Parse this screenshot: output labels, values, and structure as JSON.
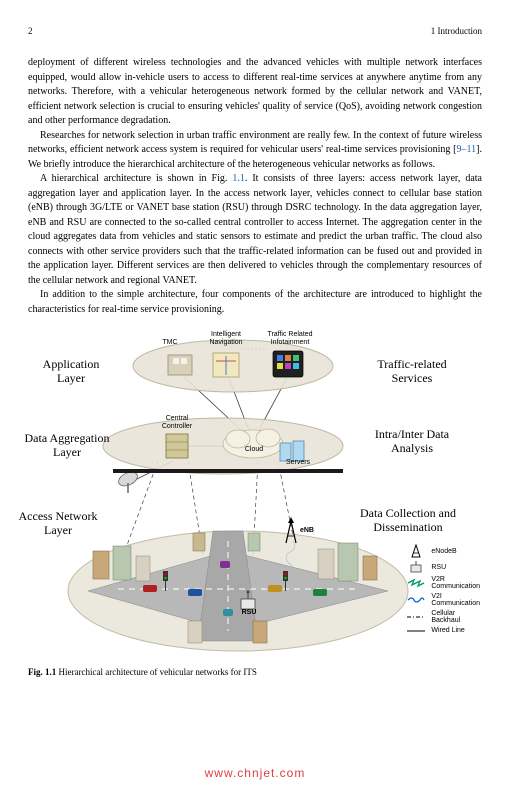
{
  "header": {
    "page_num": "2",
    "chapter": "1   Introduction"
  },
  "paragraphs": {
    "p1": "deployment of different wireless technologies and the advanced vehicles with multiple network interfaces equipped, would allow in-vehicle users to access to different real-time services at anywhere anytime from any networks. Therefore, with a vehicular heterogeneous network formed by the cellular network and VANET, efficient network selection is crucial to ensuring vehicles' quality of service (QoS), avoiding network congestion and other performance degradation.",
    "p2a": "Researches for network selection in urban traffic environment are really few. In the context of future wireless networks, efficient network access system is required for vehicular users' real-time services provisioning [",
    "p2cite": "9–11",
    "p2b": "]. We briefly introduce the hierarchical architecture of the heterogeneous vehicular networks as follows.",
    "p3a": "A hierarchical architecture is shown in Fig. ",
    "p3cite": "1.1",
    "p3b": ". It consists of three layers: access network layer, data aggregation layer and application layer. In the access network layer, vehicles connect to cellular base station (eNB) through 3G/LTE or VANET base station (RSU) through DSRC technology. In the data aggregation layer, eNB and RSU are connected to the so-called central controller to access Internet. The aggregation center in the cloud aggregates data from vehicles and static sensors to estimate and predict the urban traffic. The cloud also connects with other service providers such that the traffic-related information can be fused out and provided in the application layer. Different services are then delivered to vehicles through the complementary resources of the cellular network and regional VANET.",
    "p4": "In addition to the simple architecture, four components of the architecture are introduced to highlight the characteristics for real-time service provisioning."
  },
  "figure": {
    "layers_left": {
      "app": "Application\nLayer",
      "agg": "Data Aggregation\nLayer",
      "acc": "Access Network\nLayer"
    },
    "layers_right": {
      "app": "Traffic-related\nServices",
      "agg": "Intra/Inter Data\nAnalysis",
      "acc": "Data Collection and\nDissemination"
    },
    "top_labels": {
      "tmc": "TMC",
      "nav": "Intelligent\nNavigation",
      "info": "Traffic Related\nInfotainment"
    },
    "mid_labels": {
      "controller": "Central\nController",
      "cloud": "Cloud",
      "servers": "Servers"
    },
    "node_labels": {
      "enb": "eNB",
      "rsu": "RSU"
    },
    "legend": {
      "enb": "eNodeB",
      "rsu": "RSU",
      "v2r": "V2R\nCommunication",
      "v2i": "V2I\nCommunication",
      "backhaul": "Cellular\nBackhaul",
      "wired": "Wired Line"
    },
    "colors": {
      "ellipse_fill": "#e8e4d8",
      "ellipse_stroke": "#b8b098",
      "cloud_fill": "#f4f0e4",
      "server_fill": "#b0d8f0",
      "controller_fill": "#d0c898",
      "info_fill": "#202020",
      "nav_fill": "#f0e8c0",
      "tmc_fill": "#d8d0b8",
      "road_fill": "#b8b8b8",
      "building1": "#c8a878",
      "building2": "#b8c8b0",
      "building3": "#d8d0c0",
      "rsu_color": "#009966",
      "v2i_color": "#0066cc",
      "line": "#404040"
    }
  },
  "caption": {
    "bold": "Fig. 1.1",
    "text": "  Hierarchical architecture of vehicular networks for ITS"
  },
  "watermark": "www.chnjet.com"
}
